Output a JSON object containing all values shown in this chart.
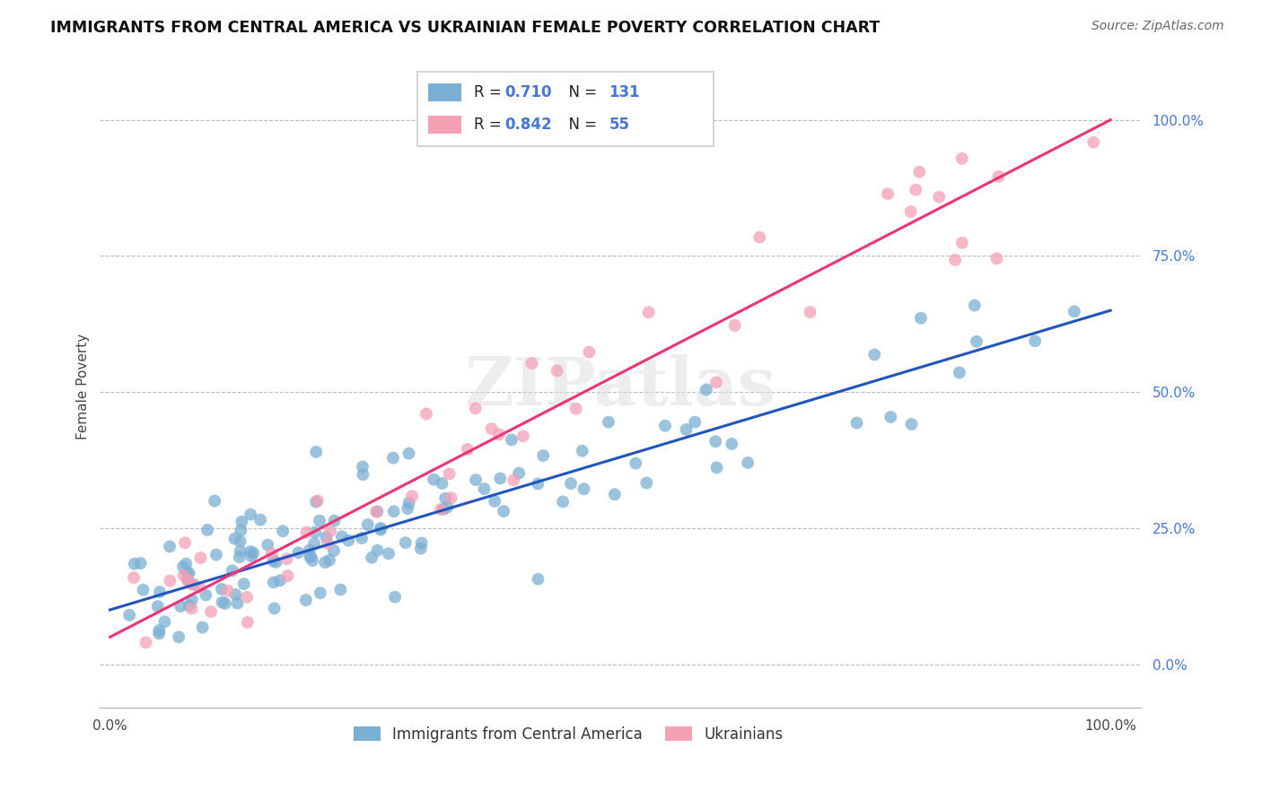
{
  "title": "IMMIGRANTS FROM CENTRAL AMERICA VS UKRAINIAN FEMALE POVERTY CORRELATION CHART",
  "source": "Source: ZipAtlas.com",
  "ylabel": "Female Poverty",
  "ytick_labels": [
    "0.0%",
    "25.0%",
    "50.0%",
    "75.0%",
    "100.0%"
  ],
  "ytick_positions": [
    0.0,
    0.25,
    0.5,
    0.75,
    1.0
  ],
  "color_blue": "#7BAFD4",
  "color_pink": "#F4A0B5",
  "regression_blue": [
    0.0,
    0.1,
    1.0,
    0.65
  ],
  "regression_pink": [
    0.0,
    0.05,
    1.0,
    1.0
  ],
  "watermark": "ZIPatlas",
  "seed_blue": 17,
  "seed_pink": 99,
  "n_blue": 131,
  "n_pink": 55,
  "r_blue": "0.710",
  "r_pink": "0.842",
  "r_color": "#4477DD",
  "n_color": "#4477DD"
}
